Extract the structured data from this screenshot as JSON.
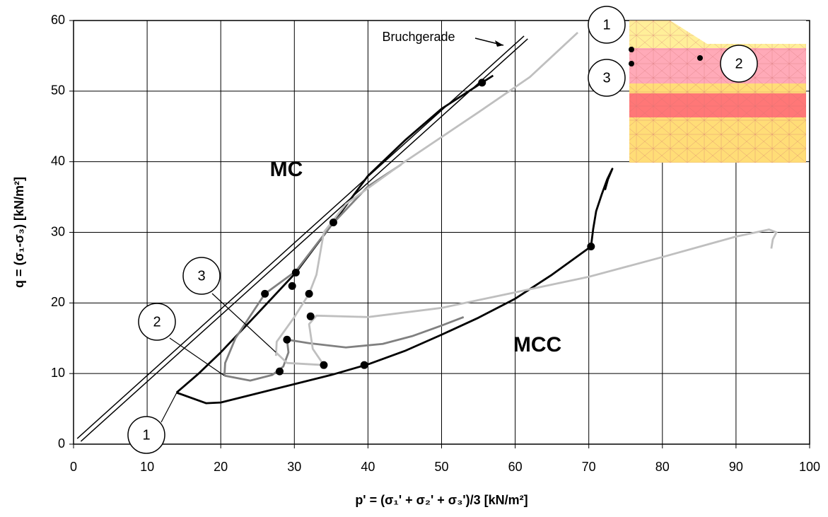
{
  "chart_data": {
    "type": "line",
    "x_label": "p' = (σ₁' + σ₂' + σ₃')/3 [kN/m²]",
    "y_label": "q = (σ₁-σ₃) [kN/m²]",
    "xlim": [
      0,
      100
    ],
    "ylim": [
      0,
      60
    ],
    "xticks": [
      0,
      10,
      20,
      30,
      40,
      50,
      60,
      70,
      80,
      90,
      100
    ],
    "yticks": [
      0,
      10,
      20,
      30,
      40,
      50,
      60
    ],
    "grid": true,
    "series": [
      {
        "color": "#000000",
        "x": [
          0.5,
          61.2
        ],
        "values": [
          0.8,
          57.8
        ]
      },
      {
        "color": "#000000",
        "x": [
          1.0,
          61.7
        ],
        "values": [
          0.4,
          57.4
        ]
      },
      {
        "color": "#000000",
        "x": [
          14,
          18,
          20,
          25,
          30,
          35,
          40,
          45,
          50,
          55,
          60,
          65,
          70.3,
          70.6,
          71,
          71.8,
          72.5,
          73.2,
          72.6,
          72.2
        ],
        "values": [
          7.3,
          5.8,
          5.9,
          7.2,
          8.5,
          9.8,
          11.3,
          13.2,
          15.5,
          17.9,
          20.6,
          24,
          28,
          30.5,
          33,
          35.5,
          37.5,
          39,
          37.5,
          36
        ]
      },
      {
        "color": "#000000",
        "x": [
          14,
          17,
          20,
          25,
          30.2,
          35.3,
          40,
          45,
          50,
          55.5,
          57
        ],
        "values": [
          7.3,
          10,
          13,
          18.5,
          24.3,
          31.4,
          38,
          43,
          47.5,
          51.2,
          52.2
        ]
      },
      {
        "color": "#808080",
        "x": [
          20.5,
          20.6,
          22,
          26,
          30.2,
          35,
          40,
          44.5
        ],
        "values": [
          9.7,
          11.5,
          15,
          21.3,
          24.5,
          31,
          36.5,
          39.6
        ]
      },
      {
        "color": "#808080",
        "x": [
          20.5,
          24,
          27,
          28.5,
          29.2,
          29,
          32,
          37,
          42,
          46,
          50,
          53
        ],
        "values": [
          9.7,
          9,
          9.8,
          11,
          13,
          14.8,
          14.3,
          13.7,
          14.2,
          15.3,
          16.8,
          18
        ]
      },
      {
        "color": "#bfbfbf",
        "x": [
          27.5,
          27.6,
          30,
          32,
          33,
          34,
          37,
          45,
          55,
          62,
          68.5
        ],
        "values": [
          12.5,
          14.5,
          18,
          21.3,
          24,
          30,
          34,
          40,
          47,
          52,
          58.3
        ]
      },
      {
        "color": "#bfbfbf",
        "x": [
          27.5,
          29,
          34,
          32.5,
          32,
          33,
          40,
          50,
          60,
          70,
          80,
          90,
          94.5,
          95.5,
          95,
          94.8
        ],
        "values": [
          13,
          11.5,
          11.2,
          13.5,
          17,
          18.2,
          18,
          19.3,
          21.5,
          23.7,
          26.5,
          29.4,
          30.4,
          30,
          29,
          27.7
        ]
      }
    ],
    "points": {
      "color": "#000000",
      "x": [
        55.5,
        35.3,
        30.2,
        29.7,
        26,
        32,
        32.2,
        29,
        28,
        34,
        39.5,
        70.3
      ],
      "values": [
        51.2,
        31.4,
        24.3,
        22.4,
        21.3,
        21.3,
        18.1,
        14.8,
        10.3,
        11.2,
        11.2,
        28
      ]
    },
    "annotations": [
      "Bruchgerade",
      "MC",
      "MCC",
      "1",
      "2",
      "3",
      "1",
      "2",
      "3"
    ]
  }
}
